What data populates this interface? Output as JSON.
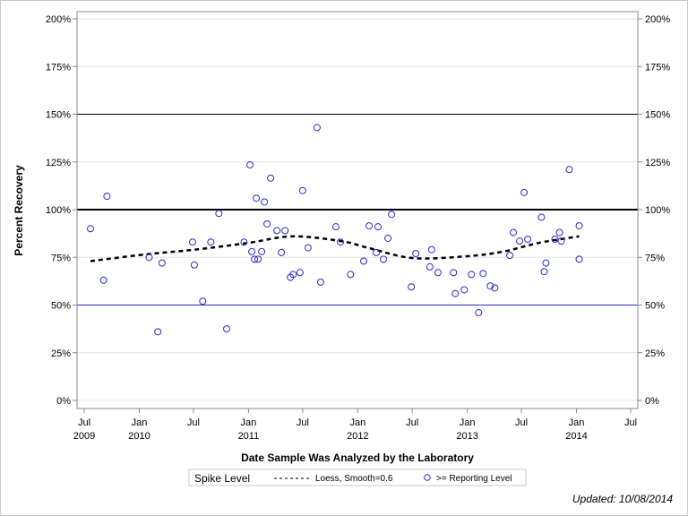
{
  "chart_data": {
    "type": "scatter",
    "title": "",
    "xlabel": "Date Sample Was Analyzed by the Laboratory",
    "ylabel": "Percent Recovery",
    "ylim": [
      0,
      200
    ],
    "xlim": [
      "2009-07-01",
      "2014-07-01"
    ],
    "y_ticks": [
      "0%",
      "25%",
      "50%",
      "75%",
      "100%",
      "125%",
      "150%",
      "175%",
      "200%"
    ],
    "y_tick_values": [
      0,
      25,
      50,
      75,
      100,
      125,
      150,
      175,
      200
    ],
    "x_ticks": [
      {
        "date": "2009-07-01",
        "line1": "Jul",
        "line2": "2009"
      },
      {
        "date": "2010-01-01",
        "line1": "Jan",
        "line2": "2010"
      },
      {
        "date": "2010-07-01",
        "line1": "Jul",
        "line2": ""
      },
      {
        "date": "2011-01-01",
        "line1": "Jan",
        "line2": "2011"
      },
      {
        "date": "2011-07-01",
        "line1": "Jul",
        "line2": ""
      },
      {
        "date": "2012-01-01",
        "line1": "Jan",
        "line2": "2012"
      },
      {
        "date": "2012-07-01",
        "line1": "Jul",
        "line2": ""
      },
      {
        "date": "2013-01-01",
        "line1": "Jan",
        "line2": "2013"
      },
      {
        "date": "2013-07-01",
        "line1": "Jul",
        "line2": ""
      },
      {
        "date": "2014-01-01",
        "line1": "Jan",
        "line2": "2014"
      },
      {
        "date": "2014-07-01",
        "line1": "Jul",
        "line2": ""
      }
    ],
    "grid": true,
    "reference_lines": [
      {
        "value": 150,
        "color": "#000000",
        "weight": "thin"
      },
      {
        "value": 100,
        "color": "#000000",
        "weight": "thick"
      },
      {
        "value": 50,
        "color": "#2b2bd0",
        "weight": "thin"
      }
    ],
    "series": [
      {
        "name": ">= Reporting Level",
        "kind": "scatter",
        "color": "#2b2bd0",
        "points": [
          [
            "2009-07-22",
            90
          ],
          [
            "2009-09-04",
            63
          ],
          [
            "2009-09-15",
            107
          ],
          [
            "2010-02-03",
            75
          ],
          [
            "2010-03-04",
            36
          ],
          [
            "2010-03-18",
            72
          ],
          [
            "2010-06-28",
            83
          ],
          [
            "2010-07-04",
            71
          ],
          [
            "2010-08-01",
            52
          ],
          [
            "2010-08-28",
            83
          ],
          [
            "2010-09-24",
            98
          ],
          [
            "2010-10-20",
            37.5
          ],
          [
            "2010-12-17",
            83
          ],
          [
            "2011-01-06",
            123.5
          ],
          [
            "2011-01-12",
            78
          ],
          [
            "2011-01-21",
            74
          ],
          [
            "2011-01-27",
            106
          ],
          [
            "2011-02-02",
            74
          ],
          [
            "2011-02-14",
            78
          ],
          [
            "2011-02-23",
            104
          ],
          [
            "2011-03-04",
            92.5
          ],
          [
            "2011-03-16",
            116.5
          ],
          [
            "2011-04-06",
            89
          ],
          [
            "2011-04-21",
            77.5
          ],
          [
            "2011-05-03",
            89
          ],
          [
            "2011-05-21",
            64.5
          ],
          [
            "2011-05-30",
            66
          ],
          [
            "2011-06-22",
            67
          ],
          [
            "2011-07-01",
            110
          ],
          [
            "2011-07-19",
            80
          ],
          [
            "2011-08-18",
            143
          ],
          [
            "2011-08-30",
            62
          ],
          [
            "2011-10-20",
            91
          ],
          [
            "2011-11-04",
            83
          ],
          [
            "2011-12-08",
            66
          ],
          [
            "2012-01-21",
            73
          ],
          [
            "2012-02-08",
            91.5
          ],
          [
            "2012-03-03",
            77.5
          ],
          [
            "2012-03-09",
            91
          ],
          [
            "2012-03-27",
            74
          ],
          [
            "2012-04-11",
            85
          ],
          [
            "2012-04-23",
            97.5
          ],
          [
            "2012-06-28",
            59.5
          ],
          [
            "2012-07-13",
            77
          ],
          [
            "2012-08-29",
            70
          ],
          [
            "2012-09-04",
            79
          ],
          [
            "2012-09-25",
            67
          ],
          [
            "2012-11-16",
            67
          ],
          [
            "2012-11-22",
            56
          ],
          [
            "2012-12-22",
            58
          ],
          [
            "2013-01-15",
            66
          ],
          [
            "2013-02-08",
            46
          ],
          [
            "2013-02-23",
            66.5
          ],
          [
            "2013-03-19",
            60
          ],
          [
            "2013-04-03",
            59
          ],
          [
            "2013-05-23",
            76
          ],
          [
            "2013-06-04",
            88
          ],
          [
            "2013-06-25",
            83.5
          ],
          [
            "2013-07-10",
            109
          ],
          [
            "2013-07-22",
            84.5
          ],
          [
            "2013-09-06",
            96
          ],
          [
            "2013-09-15",
            67.5
          ],
          [
            "2013-09-21",
            72
          ],
          [
            "2013-10-21",
            84.5
          ],
          [
            "2013-11-05",
            88
          ],
          [
            "2013-11-11",
            83.5
          ],
          [
            "2013-12-08",
            121
          ],
          [
            "2014-01-10",
            91.5
          ],
          [
            "2014-01-10",
            74
          ]
        ]
      },
      {
        "name": "Loess, Smooth=0.6",
        "kind": "line",
        "color": "#000000",
        "dash": "dashed",
        "points": [
          [
            "2009-07-22",
            73
          ],
          [
            "2010-01-19",
            76.5
          ],
          [
            "2010-07-04",
            79
          ],
          [
            "2010-12-29",
            82.5
          ],
          [
            "2011-05-27",
            86
          ],
          [
            "2011-11-07",
            83.5
          ],
          [
            "2012-02-04",
            80
          ],
          [
            "2012-07-04",
            74.6
          ],
          [
            "2013-01-01",
            75.6
          ],
          [
            "2013-05-01",
            78
          ],
          [
            "2013-08-29",
            82.6
          ],
          [
            "2014-01-10",
            86
          ]
        ]
      }
    ],
    "legend": {
      "placement": "bottom",
      "title": "Spike Level",
      "entries": [
        {
          "label": "Loess, Smooth=0.6",
          "symbol": "dashed-line"
        },
        {
          "label": ">= Reporting Level",
          "symbol": "open-circle"
        }
      ]
    },
    "footnote": "Updated: 10/08/2014"
  }
}
